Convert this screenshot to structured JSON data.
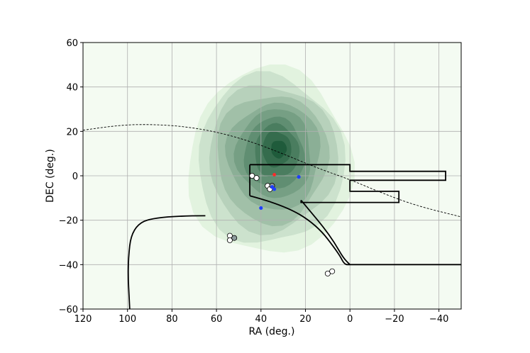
{
  "chart_data": {
    "type": "contour-scatter",
    "xlabel": "RA (deg.)",
    "ylabel": "DEC (deg.)",
    "xlim": [
      120,
      -50
    ],
    "ylim": [
      -60,
      60
    ],
    "x_ticks": [
      120,
      100,
      80,
      60,
      40,
      20,
      0,
      -20,
      -40
    ],
    "y_ticks": [
      60,
      40,
      20,
      0,
      -20,
      -40,
      -60
    ],
    "x_tick_labels": [
      "120",
      "100",
      "80",
      "60",
      "40",
      "20",
      "0",
      "−20",
      "−40"
    ],
    "y_tick_labels": [
      "60",
      "40",
      "20",
      "0",
      "−20",
      "−40",
      "−60"
    ],
    "grid": true,
    "colors": {
      "background_fill": "#f4fbf2",
      "contour_light": "#e2f3df",
      "contour_dark": "#1f5b3b",
      "red_point": "#ff2a2a",
      "blue_point": "#1f3fff",
      "grey_point": "#8c9a9c",
      "outline": "#000000"
    },
    "density_contours": {
      "center": [
        33,
        12
      ],
      "levels": [
        {
          "rx": 37,
          "ry": 42,
          "cx": 36,
          "cy": 6
        },
        {
          "rx": 33,
          "ry": 38,
          "cx": 36,
          "cy": 7
        },
        {
          "rx": 29,
          "ry": 33,
          "cx": 35,
          "cy": 8
        },
        {
          "rx": 25,
          "ry": 29,
          "cx": 35,
          "cy": 8
        },
        {
          "rx": 21,
          "ry": 24,
          "cx": 34,
          "cy": 9
        },
        {
          "rx": 17,
          "ry": 20,
          "cx": 34,
          "cy": 10
        },
        {
          "rx": 13.5,
          "ry": 16,
          "cx": 34,
          "cy": 10
        },
        {
          "rx": 10,
          "ry": 12,
          "cx": 33,
          "cy": 11
        },
        {
          "rx": 6.5,
          "ry": 8,
          "cx": 33,
          "cy": 12
        },
        {
          "rx": 3.5,
          "ry": 4,
          "cx": 32,
          "cy": 12
        }
      ]
    },
    "dashed_curve": [
      [
        120,
        20.5
      ],
      [
        105,
        22.8
      ],
      [
        90,
        23.2
      ],
      [
        75,
        22.3
      ],
      [
        60,
        19.8
      ],
      [
        45,
        15.6
      ],
      [
        30,
        9.9
      ],
      [
        15,
        3.6
      ],
      [
        0,
        -1.7
      ],
      [
        -15,
        -8.0
      ],
      [
        -30,
        -13.5
      ],
      [
        -50,
        -18.5
      ]
    ],
    "survey_outline": [
      [
        [
          45,
          5
        ],
        [
          0,
          5
        ],
        [
          0,
          2
        ],
        [
          -43,
          2
        ],
        [
          -43,
          -2
        ],
        [
          0,
          -2
        ],
        [
          0,
          -7
        ],
        [
          -22,
          -7
        ],
        [
          -22,
          -12
        ],
        [
          22,
          -12
        ],
        [
          22,
          -11
        ]
      ],
      [
        [
          45,
          5
        ],
        [
          45,
          -9
        ],
        [
          37,
          -12
        ],
        [
          25,
          -15
        ]
      ]
    ],
    "outline_curves": [
      {
        "name": "left",
        "points": [
          [
            45,
            -9
          ],
          [
            30,
            -13
          ],
          [
            15,
            -22
          ],
          [
            5,
            -35
          ],
          [
            2.5,
            -40
          ],
          [
            0,
            -40
          ],
          [
            -50,
            -40
          ]
        ]
      },
      {
        "name": "right",
        "points": [
          [
            22,
            -11
          ],
          [
            17,
            -17
          ],
          [
            12,
            -23
          ],
          [
            7,
            -30
          ],
          [
            3,
            -37
          ],
          [
            0,
            -40
          ]
        ]
      },
      {
        "name": "edge",
        "points": [
          [
            65,
            -18
          ],
          [
            87,
            -18
          ],
          [
            98,
            -23
          ],
          [
            100,
            -40
          ],
          [
            99,
            -60
          ]
        ]
      }
    ],
    "points_open": [
      [
        44,
        0
      ],
      [
        42,
        -1
      ],
      [
        37,
        -4.5
      ],
      [
        36,
        -6
      ],
      [
        54,
        -27
      ],
      [
        54,
        -29
      ],
      [
        10,
        -44
      ],
      [
        8,
        -43
      ]
    ],
    "points_grey": [
      [
        35,
        -4.5
      ],
      [
        52,
        -28
      ]
    ],
    "points_blue": [
      [
        35,
        -5
      ],
      [
        34,
        -6
      ],
      [
        40,
        -14.5
      ],
      [
        23,
        -0.5
      ]
    ],
    "points_red": [
      [
        34,
        0.5
      ]
    ]
  }
}
